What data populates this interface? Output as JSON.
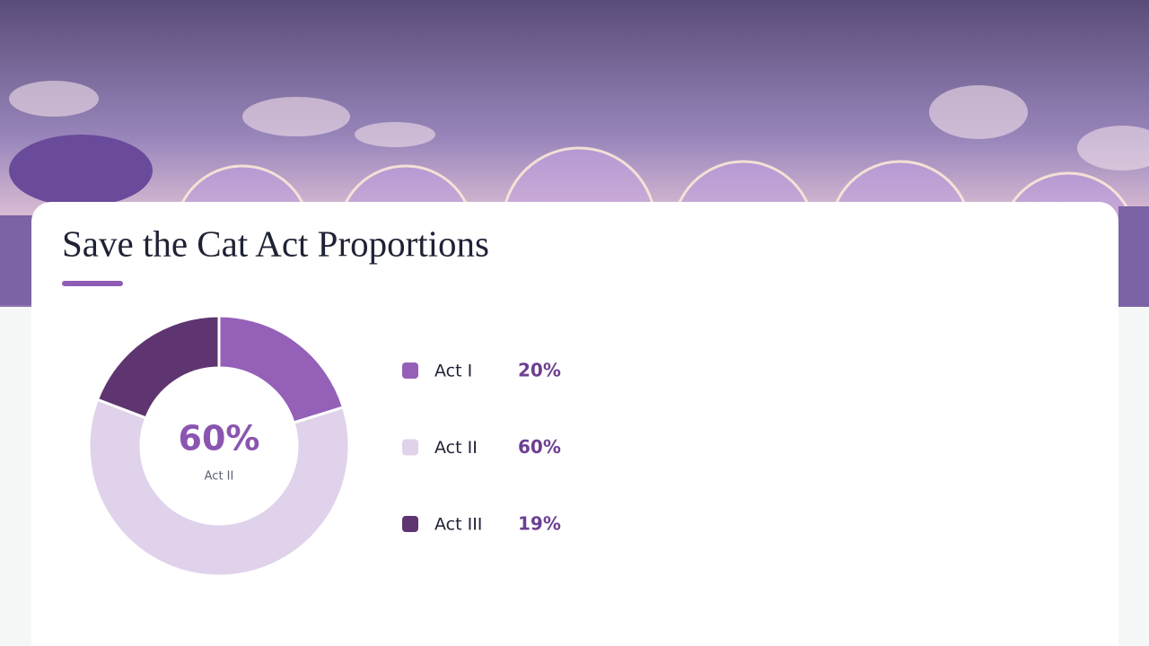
{
  "chart_data": {
    "type": "donut",
    "title": "Save the Cat Act Proportions",
    "categories": [
      "Act I",
      "Act II",
      "Act III"
    ],
    "values": [
      20,
      60,
      19
    ],
    "value_labels": [
      "20%",
      "60%",
      "19%"
    ],
    "colors": [
      "#9460b8",
      "#e0d2ea",
      "#5e3570"
    ],
    "highlight": 1
  }
}
